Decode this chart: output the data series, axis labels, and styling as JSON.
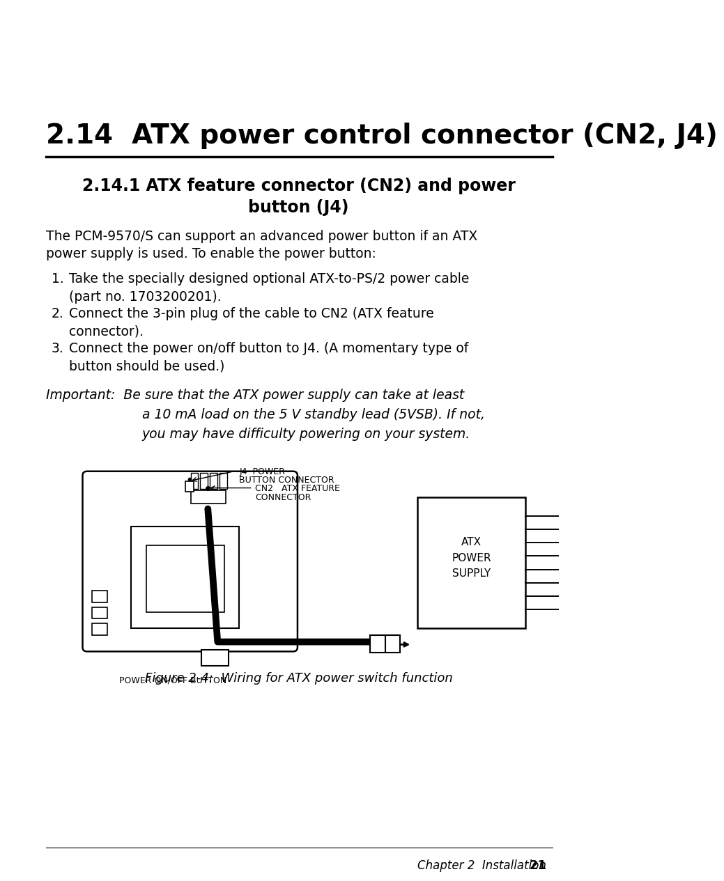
{
  "title": "2.14  ATX power control connector (CN2, J4)",
  "subtitle_line1": "2.14.1 ATX feature connector (CN2) and power",
  "subtitle_line2": "button (J4)",
  "body_text_line1": "The PCM-9570/S can support an advanced power button if an ATX",
  "body_text_line2": "power supply is used. To enable the power button:",
  "list_items": [
    [
      "Take the specially designed optional ATX-to-PS/2 power cable",
      "(part no. 1703200201)."
    ],
    [
      "Connect the 3-pin plug of the cable to CN2 (ATX feature",
      "connector)."
    ],
    [
      "Connect the power on/off button to J4. (A momentary type of",
      "button should be used.)"
    ]
  ],
  "important_line1": "Important:  Be sure that the ATX power supply can take at least",
  "important_line2": "a 10 mA load on the 5 V standby lead (5VSB). If not,",
  "important_line3": "you may have difficulty powering on your system.",
  "figure_caption": "Figure 2-4:  Wiring for ATX power switch function",
  "footer": "Chapter 2  Installation",
  "page_number": "21",
  "bg_color": "#ffffff",
  "text_color": "#000000"
}
